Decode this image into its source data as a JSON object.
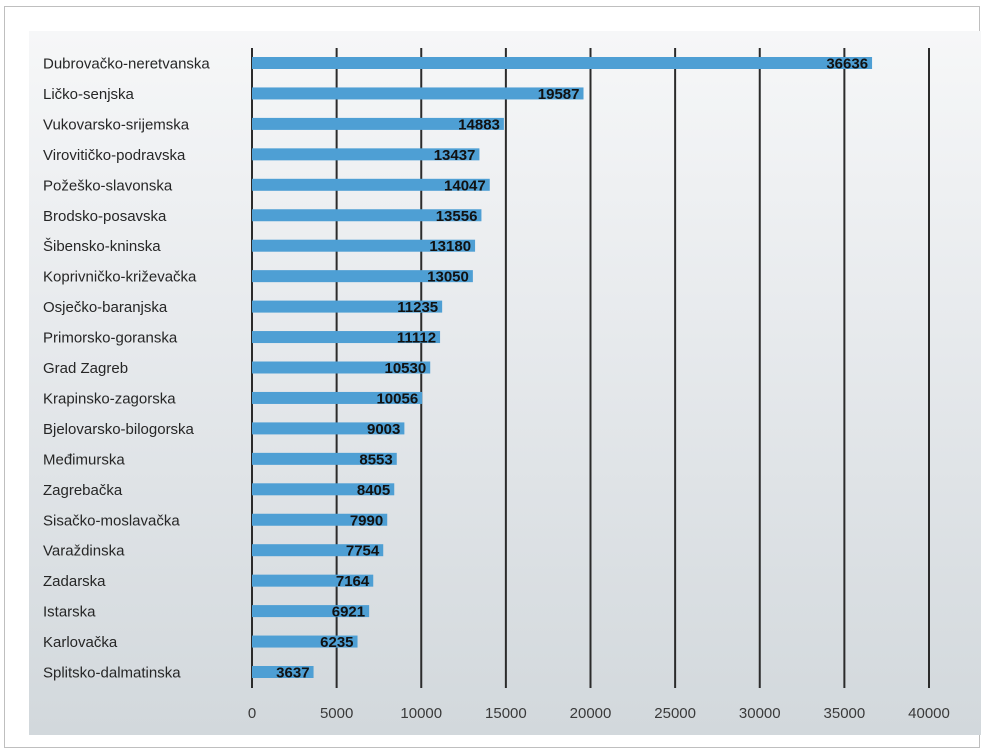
{
  "chart_data": {
    "type": "bar",
    "orientation": "horizontal",
    "categories": [
      "Dubrovačko-neretvanska",
      "Ličko-senjska",
      "Vukovarsko-srijemska",
      "Virovitičko-podravska",
      "Požeško-slavonska",
      "Brodsko-posavska",
      "Šibensko-kninska",
      "Koprivničko-križevačka",
      "Osječko-baranjska",
      "Primorsko-goranska",
      "Grad Zagreb",
      "Krapinsko-zagorska",
      "Bjelovarsko-bilogorska",
      "Međimurska",
      "Zagrebačka",
      "Sisačko-moslavačka",
      "Varaždinska",
      "Zadarska",
      "Istarska",
      "Karlovačka",
      "Splitsko-dalmatinska"
    ],
    "values": [
      36636,
      19587,
      14883,
      13437,
      14047,
      13556,
      13180,
      13050,
      11235,
      11112,
      10530,
      10056,
      9003,
      8553,
      8405,
      7990,
      7754,
      7164,
      6921,
      6235,
      3637
    ],
    "value_labels": [
      "36636",
      "19587",
      "14883",
      "13437",
      "14047",
      "13556",
      "13180",
      "13050",
      "11235",
      "11112",
      "10530",
      "10056",
      "9003",
      "8553",
      "8405",
      "7990",
      "7754",
      "7164",
      "6921",
      "6235",
      "3637"
    ],
    "xlim": [
      0,
      40000
    ],
    "xticks": [
      0,
      5000,
      10000,
      15000,
      20000,
      25000,
      30000,
      35000,
      40000
    ],
    "xtick_labels": [
      "0",
      "5000",
      "10000",
      "15000",
      "20000",
      "25000",
      "30000",
      "35000",
      "40000"
    ],
    "grid": "vertical",
    "legend": "none",
    "colors": {
      "bar": "#4e9fd4",
      "grid": "#2b2b2b",
      "label": "#111111"
    }
  }
}
